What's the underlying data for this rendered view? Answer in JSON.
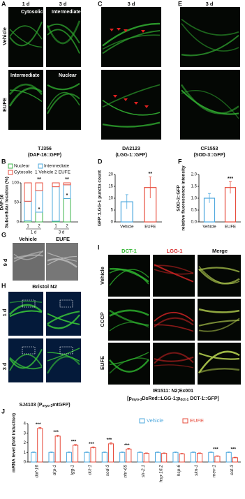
{
  "panels": {
    "a": {
      "label": "A",
      "columns": [
        "1 d",
        "3 d"
      ],
      "rows": [
        "Vehicle",
        "EUFE"
      ],
      "image_labels": [
        "Cytosolic",
        "Intermediate",
        "Intermediate",
        "Nuclear"
      ],
      "caption": [
        "TJ356",
        "(DAF-16::GFP)"
      ]
    },
    "c": {
      "label": "C",
      "column": "3 d",
      "caption": [
        "DA2123",
        "(LGG-1::GFP)"
      ]
    },
    "e": {
      "label": "E",
      "column": "3 d",
      "caption": [
        "CF1553",
        "(SOD-3::GFP)"
      ]
    },
    "g": {
      "label": "G",
      "columns": [
        "Vehicle",
        "EUFE"
      ],
      "row": "9 d"
    },
    "h": {
      "label": "H",
      "title": "Bristol N2",
      "rows": [
        "1 d",
        "3 d"
      ],
      "caption": [
        "SJ4103 (P",
        "myo-3",
        "mtGFP)"
      ]
    },
    "i": {
      "label": "I",
      "columns": [
        "DCT-1",
        "LGG-1",
        "Merge"
      ],
      "rows": [
        "Vehicle",
        "CCCP",
        "EUFE"
      ],
      "caption": "IR1511:  N2;Ex001",
      "caption_line2": [
        "[p",
        "myo-3",
        "DsRed::LGG-1;p",
        "dct-1",
        " DCT-1::GFP]"
      ]
    }
  },
  "chart_data": [
    {
      "type": "stacked_bar",
      "panel_label": "B",
      "y_label": [
        "DAF-16",
        "Subcellular location (%)"
      ],
      "categories": [
        "1",
        "2",
        "1",
        "2"
      ],
      "groups": [
        "1 d",
        "3 d"
      ],
      "legend_note": "1 Vehicle 2 EUFE",
      "series": [
        {
          "name": "Nuclear",
          "color": "#3cb44b",
          "values": [
            3,
            25,
            2,
            60
          ]
        },
        {
          "name": "Intermediate",
          "color": "#4ea8de",
          "values": [
            50,
            55,
            88,
            35
          ]
        },
        {
          "name": "Cytosolic",
          "color": "#e74c3c",
          "values": [
            47,
            20,
            10,
            5
          ]
        }
      ],
      "significance": [
        null,
        "**",
        null,
        "**"
      ],
      "segment_significance": [
        null,
        "*",
        null,
        "*"
      ],
      "ylim": [
        0,
        100
      ],
      "yticks": [
        0,
        50,
        100
      ]
    },
    {
      "type": "bar",
      "panel_label": "D",
      "y_label": [
        "GFP::LGG-1 puncta count"
      ],
      "categories": [
        "Vehicle",
        "EUFE"
      ],
      "values": [
        8.5,
        14.5
      ],
      "errors": [
        3,
        4.5
      ],
      "colors": [
        "#4ea8de",
        "#e74c3c"
      ],
      "significance": [
        null,
        "**"
      ],
      "ylim": [
        0,
        20
      ],
      "yticks": [
        0,
        5,
        10,
        15,
        20
      ]
    },
    {
      "type": "bar",
      "panel_label": "F",
      "y_label": [
        "SOD-3::GFP",
        "relative fluorescence intensity"
      ],
      "categories": [
        "Vehicle",
        "EUFE"
      ],
      "values": [
        1.0,
        1.45
      ],
      "errors": [
        0.2,
        0.25
      ],
      "colors": [
        "#4ea8de",
        "#e74c3c"
      ],
      "significance": [
        null,
        "***"
      ],
      "ylim": [
        0,
        2
      ],
      "yticks": [
        {
          "value": 0,
          "label": "0.0"
        },
        0.5,
        {
          "value": 1,
          "label": "1.0"
        },
        1.5,
        {
          "value": 2,
          "label": "2.0"
        }
      ]
    },
    {
      "type": "grouped_bar",
      "panel_label": "J",
      "y_label": [
        "mRNA level (fold induction)"
      ],
      "categories": [
        "daf-16",
        "drp-1",
        "lgg-1",
        "dct-1",
        "sod-3",
        "nhr-65",
        "sir-2.1",
        "hsp-16.2",
        "hsp-6",
        "skn-1",
        "mev-1",
        "eat-3"
      ],
      "series": [
        {
          "name": "Vehicle",
          "color": "#4ea8de",
          "values": [
            1,
            1,
            1,
            1,
            1,
            1,
            1,
            1,
            1,
            1,
            1,
            1
          ],
          "errors": [
            0.05,
            0.05,
            0.05,
            0.05,
            0.05,
            0.05,
            0.05,
            0.05,
            0.05,
            0.05,
            0.05,
            0.05
          ]
        },
        {
          "name": "EUFE",
          "color": "#e74c3c",
          "values": [
            3.5,
            2.7,
            1.75,
            1.5,
            1.9,
            1.35,
            0.9,
            0.9,
            0.85,
            0.9,
            0.6,
            0.45
          ],
          "errors": [
            0.1,
            0.1,
            0.08,
            0.08,
            0.1,
            0.08,
            0.05,
            0.05,
            0.05,
            0.05,
            0.05,
            0.05
          ]
        }
      ],
      "significance": [
        "***",
        "***",
        "***",
        "***",
        "***",
        "***",
        null,
        null,
        null,
        null,
        "***",
        "***"
      ],
      "ylim": [
        0,
        4
      ],
      "yticks": [
        0,
        1,
        2,
        3,
        4
      ]
    }
  ]
}
